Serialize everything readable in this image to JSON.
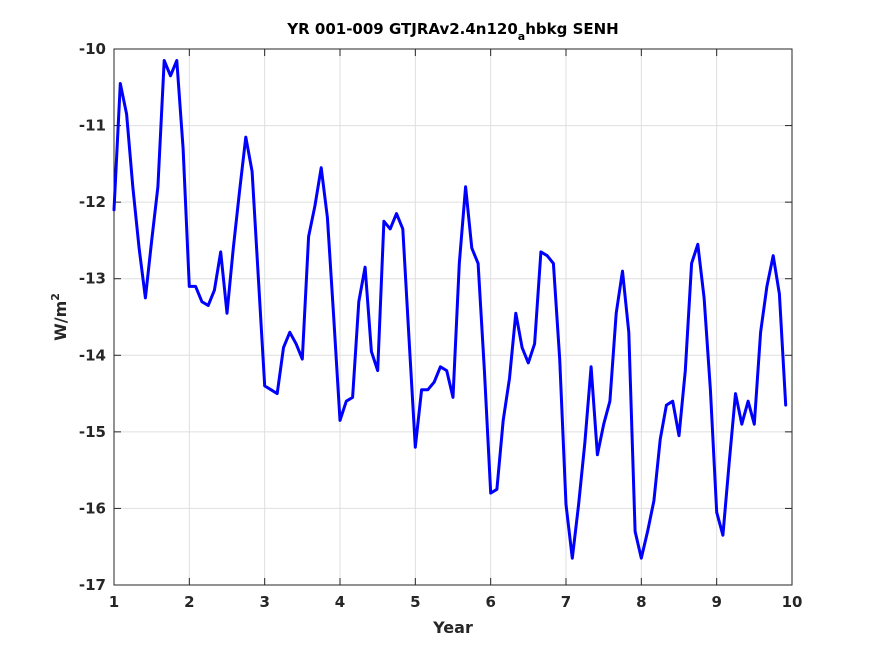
{
  "chart_data": {
    "type": "line",
    "title_main": "YR 001-009 GTJRAv2.4n120",
    "title_sub": "a",
    "title_tail": "hbkg SENH",
    "xlabel": "Year",
    "ylabel_base": "W/m",
    "ylabel_exp": "2",
    "xlim": [
      1,
      10
    ],
    "ylim": [
      -17,
      -10
    ],
    "xticks": [
      1,
      2,
      3,
      4,
      5,
      6,
      7,
      8,
      9,
      10
    ],
    "yticks": [
      -17,
      -16,
      -15,
      -14,
      -13,
      -12,
      -11,
      -10
    ],
    "grid": true,
    "line_color": "#0000ff",
    "x": [
      1.0,
      1.083,
      1.167,
      1.25,
      1.333,
      1.417,
      1.5,
      1.583,
      1.667,
      1.75,
      1.833,
      1.917,
      2.0,
      2.083,
      2.167,
      2.25,
      2.333,
      2.417,
      2.5,
      2.583,
      2.667,
      2.75,
      2.833,
      2.917,
      3.0,
      3.083,
      3.167,
      3.25,
      3.333,
      3.417,
      3.5,
      3.583,
      3.667,
      3.75,
      3.833,
      3.917,
      4.0,
      4.083,
      4.167,
      4.25,
      4.333,
      4.417,
      4.5,
      4.583,
      4.667,
      4.75,
      4.833,
      4.917,
      5.0,
      5.083,
      5.167,
      5.25,
      5.333,
      5.417,
      5.5,
      5.583,
      5.667,
      5.75,
      5.833,
      5.917,
      6.0,
      6.083,
      6.167,
      6.25,
      6.333,
      6.417,
      6.5,
      6.583,
      6.667,
      6.75,
      6.833,
      6.917,
      7.0,
      7.083,
      7.167,
      7.25,
      7.333,
      7.417,
      7.5,
      7.583,
      7.667,
      7.75,
      7.833,
      7.917,
      8.0,
      8.083,
      8.167,
      8.25,
      8.333,
      8.417,
      8.5,
      8.583,
      8.667,
      8.75,
      8.833,
      8.917,
      9.0,
      9.083,
      9.167,
      9.25,
      9.333,
      9.417,
      9.5,
      9.583,
      9.667,
      9.75,
      9.833,
      9.917
    ],
    "y": [
      -12.1,
      -10.45,
      -10.85,
      -11.8,
      -12.6,
      -13.25,
      -12.5,
      -11.8,
      -10.15,
      -10.35,
      -10.15,
      -11.3,
      -13.1,
      -13.1,
      -13.3,
      -13.35,
      -13.15,
      -12.65,
      -13.45,
      -12.6,
      -11.85,
      -11.15,
      -11.6,
      -13.0,
      -14.4,
      -14.45,
      -14.5,
      -13.9,
      -13.7,
      -13.85,
      -14.05,
      -12.45,
      -12.05,
      -11.55,
      -12.2,
      -13.5,
      -14.85,
      -14.6,
      -14.55,
      -13.3,
      -12.85,
      -13.95,
      -14.2,
      -12.25,
      -12.35,
      -12.15,
      -12.35,
      -13.8,
      -15.2,
      -14.45,
      -14.45,
      -14.35,
      -14.15,
      -14.2,
      -14.55,
      -12.8,
      -11.8,
      -12.6,
      -12.8,
      -14.2,
      -15.8,
      -15.75,
      -14.85,
      -14.3,
      -13.45,
      -13.9,
      -14.1,
      -13.85,
      -12.65,
      -12.7,
      -12.8,
      -14.05,
      -15.95,
      -16.65,
      -15.95,
      -15.15,
      -14.15,
      -15.3,
      -14.9,
      -14.6,
      -13.45,
      -12.9,
      -13.7,
      -16.3,
      -16.65,
      -16.3,
      -15.9,
      -15.1,
      -14.65,
      -14.6,
      -15.05,
      -14.2,
      -12.8,
      -12.55,
      -13.25,
      -14.45,
      -16.05,
      -16.35,
      -15.4,
      -14.5,
      -14.9,
      -14.6,
      -14.9,
      -13.7,
      -13.1,
      -12.7,
      -13.2,
      -14.65
    ]
  }
}
